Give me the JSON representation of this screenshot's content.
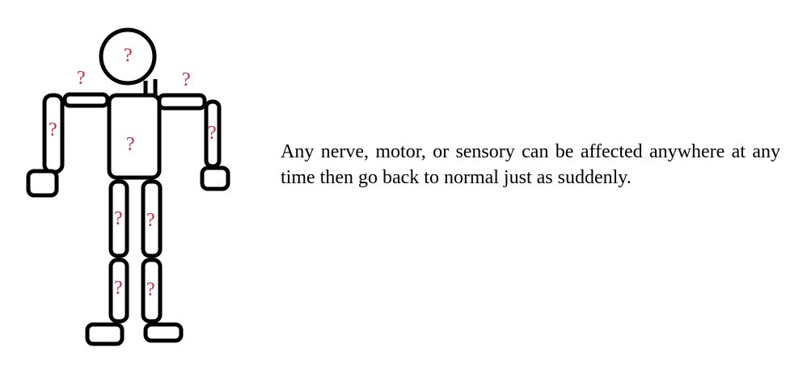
{
  "figure": {
    "stroke_color": "#000000",
    "mark_color": "#c8283c",
    "question_mark": "?"
  },
  "caption": {
    "text": "Any nerve, motor, or sensory can be affected anywhere at any time then go back to normal just as suddenly."
  }
}
